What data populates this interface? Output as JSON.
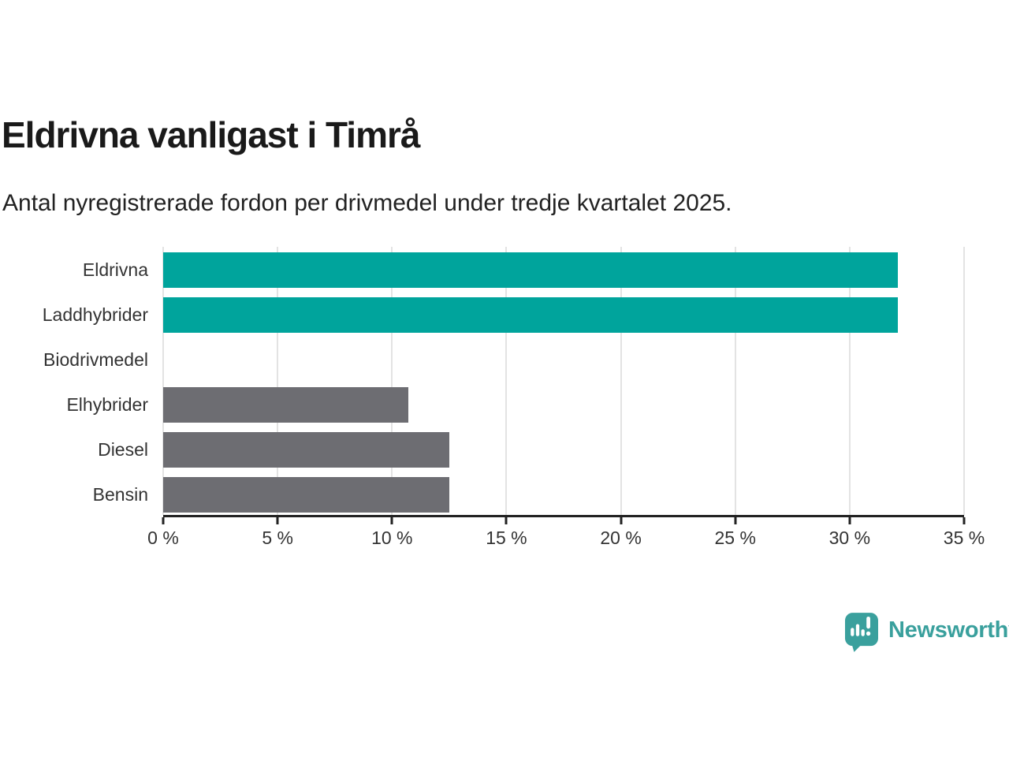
{
  "chart_data": {
    "type": "bar",
    "orientation": "horizontal",
    "title": "Eldrivna vanligast i Timrå",
    "subtitle": "Antal nyregistrerade fordon per drivmedel under tredje kvartalet 2025.",
    "categories": [
      "Eldrivna",
      "Laddhybrider",
      "Biodrivmedel",
      "Elhybrider",
      "Diesel",
      "Bensin"
    ],
    "values": [
      32.1,
      32.1,
      0,
      10.7,
      12.5,
      12.5
    ],
    "unit": "%",
    "xlabel": "",
    "ylabel": "",
    "xlim": [
      0,
      35
    ],
    "x_tick_values": [
      0,
      5,
      10,
      15,
      20,
      25,
      30,
      35
    ],
    "x_tick_labels": [
      "0 %",
      "5 %",
      "10 %",
      "15 %",
      "20 %",
      "25 %",
      "30 %",
      "35 %"
    ],
    "grid": "vertical-light",
    "legend": "none",
    "bar_colors": [
      "#00a49c",
      "#00a49c",
      "#6d6d72",
      "#6d6d72",
      "#6d6d72",
      "#6d6d72"
    ]
  },
  "colors": {
    "highlight_teal": "#00a49c",
    "neutral_gray": "#6d6d72",
    "logo_teal": "#3aa09d",
    "axis": "#222222",
    "gridline": "#e3e3e3",
    "label_text": "#333333"
  },
  "branding": {
    "logo_text": "Newsworthy",
    "logo_icon": "speech-bubble-with-bar-chart-and-exclamation"
  }
}
